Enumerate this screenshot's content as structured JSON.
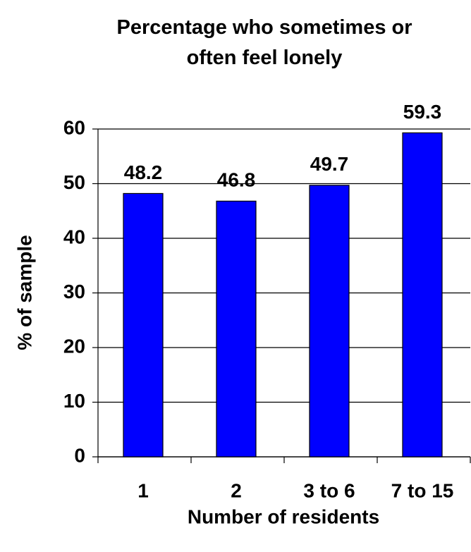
{
  "chart_data": {
    "type": "bar",
    "title": "Percentage who sometimes or often feel lonely",
    "x_label": "Number of residents",
    "y_label": "% of sample",
    "categories": [
      "1",
      "2",
      "3 to 6",
      "7 to 15"
    ],
    "values": [
      48.2,
      46.8,
      49.7,
      59.3
    ],
    "color": "#0000ff",
    "ylim": [
      0,
      60
    ],
    "yticks": [
      0,
      10,
      20,
      30,
      40,
      50,
      60
    ],
    "grid": true
  }
}
